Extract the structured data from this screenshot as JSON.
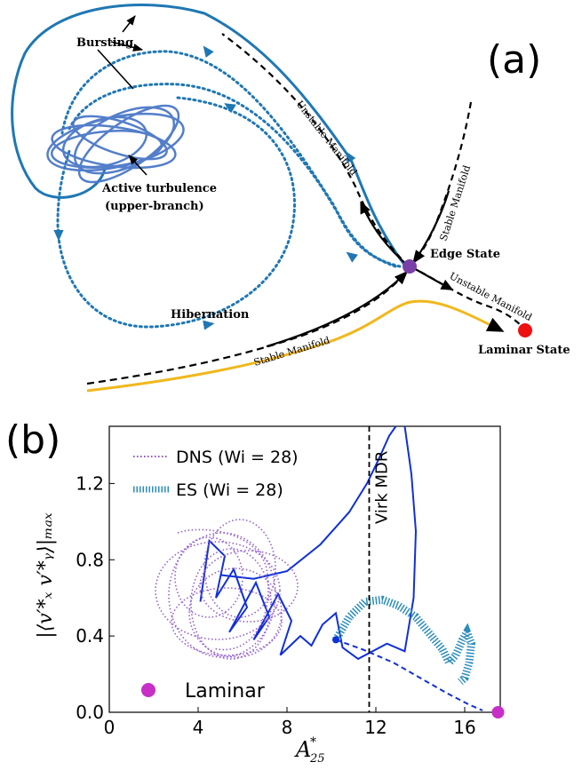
{
  "panel_a": {
    "label": "(a)",
    "labels": {
      "bursting": "Bursting",
      "active_turbulence": "Active turbulence",
      "upper_branch": "(upper-branch)",
      "hibernation": "Hibernation",
      "unstable_manifold_upper": "Unstable Manifold",
      "stable_manifold_upper": "Stable Manifold",
      "edge_state": "Edge State",
      "unstable_manifold_lower": "Unstable Manifold",
      "stable_manifold_lower": "Stable Manifold",
      "laminar_state": "Laminar State"
    },
    "colors": {
      "trajectory": "#1f77b4",
      "active": "#4a78c8",
      "edge_state": "#7b3fa8",
      "laminar_state": "#ee1111",
      "yellow_path": "#f0b81e",
      "manifold": "#000000"
    }
  },
  "chart_data": {
    "type": "line",
    "panel_label": "(b)",
    "xlabel": "A*25",
    "ylabel": "|⟨v′*x v′*y⟩|max",
    "xlim": [
      0,
      17.6
    ],
    "ylim": [
      0,
      1.5
    ],
    "x_ticks": [
      "0",
      "4",
      "8",
      "12",
      "16"
    ],
    "y_ticks": [
      "0.0",
      "0.4",
      "0.8",
      "1.2"
    ],
    "legend": {
      "placement": "top-left",
      "entries": [
        {
          "label": "DNS (Wi = 28)",
          "color": "#8a4fc9",
          "style": "dotted"
        },
        {
          "label": "ES (Wi = 28)",
          "color": "#2b8cbe",
          "style": "hatched"
        }
      ]
    },
    "annotations": {
      "virk_label": "Virk MDR",
      "virk_x": 11.7,
      "laminar_label": "Laminar",
      "laminar_point": [
        17.5,
        0.0
      ]
    },
    "series": [
      {
        "name": "trajectory",
        "color": "#1030d8",
        "points": [
          [
            4.1,
            0.58
          ],
          [
            4.5,
            0.9
          ],
          [
            5.2,
            0.82
          ],
          [
            4.8,
            0.6
          ],
          [
            5.6,
            0.75
          ],
          [
            6.2,
            0.55
          ],
          [
            5.4,
            0.42
          ],
          [
            6.6,
            0.68
          ],
          [
            7.2,
            0.5
          ],
          [
            6.5,
            0.38
          ],
          [
            7.6,
            0.62
          ],
          [
            8.2,
            0.48
          ],
          [
            7.7,
            0.3
          ],
          [
            8.6,
            0.4
          ],
          [
            9.1,
            0.35
          ],
          [
            9.6,
            0.46
          ],
          [
            10.2,
            0.52
          ],
          [
            10.5,
            0.34
          ],
          [
            11.2,
            0.28
          ],
          [
            12.5,
            0.36
          ],
          [
            13.3,
            0.32
          ],
          [
            13.7,
            0.6
          ],
          [
            13.8,
            0.95
          ],
          [
            13.6,
            1.25
          ],
          [
            13.3,
            1.5
          ]
        ]
      },
      {
        "name": "edge-trajectory",
        "color": "#1030d8",
        "points": [
          [
            10.2,
            0.38
          ],
          [
            11.4,
            0.33
          ],
          [
            12.8,
            0.26
          ],
          [
            14.0,
            0.18
          ],
          [
            15.2,
            0.1
          ],
          [
            16.2,
            0.04
          ],
          [
            16.8,
            0.01
          ]
        ]
      },
      {
        "name": "upper-excursion",
        "color": "#1030d8",
        "points": [
          [
            5.0,
            0.72
          ],
          [
            6.5,
            0.7
          ],
          [
            8.0,
            0.74
          ],
          [
            9.5,
            0.88
          ],
          [
            10.8,
            1.05
          ],
          [
            11.6,
            1.2
          ],
          [
            12.1,
            1.32
          ],
          [
            12.6,
            1.45
          ],
          [
            12.9,
            1.5
          ]
        ]
      },
      {
        "name": "ES (Wi = 28)",
        "color": "#2b8cbe",
        "points": [
          [
            10.2,
            0.38
          ],
          [
            10.8,
            0.5
          ],
          [
            11.5,
            0.58
          ],
          [
            12.3,
            0.59
          ],
          [
            13.0,
            0.56
          ],
          [
            13.8,
            0.5
          ],
          [
            14.5,
            0.4
          ],
          [
            15.0,
            0.33
          ],
          [
            15.3,
            0.26
          ],
          [
            15.6,
            0.3
          ],
          [
            15.9,
            0.38
          ],
          [
            16.1,
            0.42
          ],
          [
            16.3,
            0.36
          ],
          [
            16.2,
            0.26
          ],
          [
            16.0,
            0.18
          ],
          [
            15.8,
            0.16
          ]
        ]
      }
    ]
  }
}
